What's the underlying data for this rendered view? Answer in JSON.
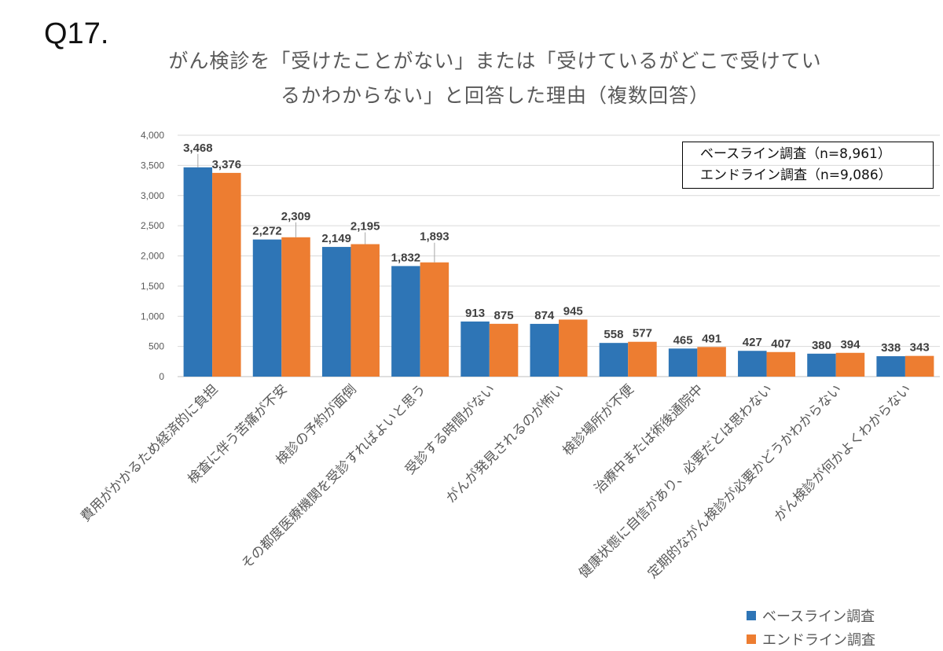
{
  "question_number": "Q17.",
  "chart_data": {
    "type": "bar",
    "title": [
      "がん検診を「受けたことがない」または「受けているがどこで受けてい",
      "るかわからない」と回答した理由（複数回答）"
    ],
    "xlabel": "",
    "ylabel": "",
    "ylim": [
      0,
      4000
    ],
    "yticks": [
      0,
      500,
      1000,
      1500,
      2000,
      2500,
      3000,
      3500,
      4000
    ],
    "ytick_labels": [
      "0",
      "500",
      "1,000",
      "1,500",
      "2,000",
      "2,500",
      "3,000",
      "3,500",
      "4,000"
    ],
    "grid": true,
    "legend_position": "bottom-right",
    "categories": [
      "費用がかかるため経済的に負担",
      "検査に伴う苦痛が不安",
      "検診の予約が面倒",
      "その都度医療機関を受診すればよいと思う",
      "受診する時間がない",
      "がんが発見されるのが怖い",
      "検診場所が不便",
      "治療中または術後通院中",
      "健康状態に自信があり、必要だとは思わない",
      "定期的ながん検診が必要かどうかわからない",
      "がん検診が何かよくわからない"
    ],
    "series": [
      {
        "name": "ベースライン調査",
        "color": "#2E75B6",
        "values": [
          3468,
          2272,
          2149,
          1832,
          913,
          874,
          558,
          465,
          427,
          380,
          338
        ],
        "labels": [
          "3,468",
          "2,272",
          "2,149",
          "1,832",
          "913",
          "874",
          "558",
          "465",
          "427",
          "380",
          "338"
        ]
      },
      {
        "name": "エンドライン調査",
        "color": "#ED7D31",
        "values": [
          3376,
          2309,
          2195,
          1893,
          875,
          945,
          577,
          491,
          407,
          394,
          343
        ],
        "labels": [
          "3,376",
          "2,309",
          "2,195",
          "1,893",
          "875",
          "945",
          "577",
          "491",
          "407",
          "394",
          "343"
        ]
      }
    ],
    "annotation": [
      "ベースライン調査（n=8,961）",
      "エンドライン調査（n=9,086）"
    ]
  }
}
